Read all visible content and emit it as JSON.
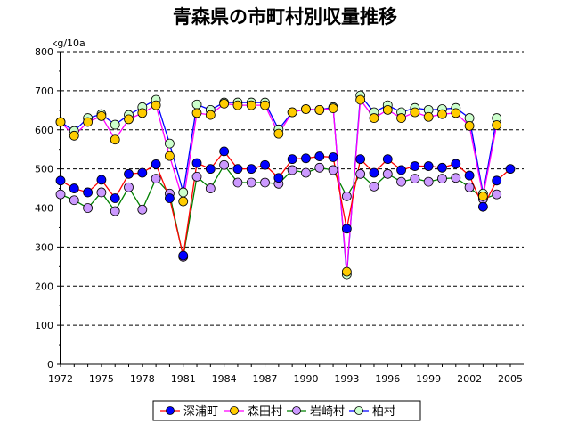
{
  "chart_data": {
    "type": "line",
    "title": "青森県の市町村別収量推移",
    "ylabel": "kg/10a",
    "xlabel": "",
    "ylim": [
      0,
      800
    ],
    "yticks": [
      0,
      100,
      200,
      300,
      400,
      500,
      600,
      700,
      800
    ],
    "xticks": [
      1972,
      1975,
      1978,
      1981,
      1984,
      1987,
      1990,
      1993,
      1996,
      1999,
      2002,
      2005
    ],
    "xlim": [
      1972,
      2005
    ],
    "grid": "horizontal dashed",
    "legend": "bottom",
    "x": [
      1972,
      1973,
      1974,
      1975,
      1976,
      1977,
      1978,
      1979,
      1980,
      1981,
      1982,
      1983,
      1984,
      1985,
      1986,
      1987,
      1988,
      1989,
      1990,
      1991,
      1992,
      1993,
      1994,
      1995,
      1996,
      1997,
      1998,
      1999,
      2000,
      2001,
      2002,
      2003,
      2004,
      2005
    ],
    "series": [
      {
        "name": "深浦町",
        "line": "#ff0000",
        "marker": "#0000ff",
        "values": [
          470,
          450,
          440,
          472,
          425,
          487,
          490,
          512,
          425,
          278,
          515,
          500,
          545,
          500,
          500,
          510,
          477,
          525,
          527,
          532,
          530,
          347,
          525,
          490,
          525,
          497,
          507,
          507,
          503,
          513,
          483,
          403,
          470,
          500
        ]
      },
      {
        "name": "森田村",
        "line": "#ff00ff",
        "marker": "#ffcc00",
        "values": [
          620,
          585,
          620,
          635,
          575,
          627,
          643,
          663,
          533,
          417,
          643,
          638,
          667,
          663,
          663,
          663,
          590,
          645,
          653,
          651,
          655,
          237,
          677,
          630,
          651,
          630,
          645,
          633,
          640,
          643,
          610,
          430,
          612,
          null
        ]
      },
      {
        "name": "岩崎村",
        "line": "#008000",
        "marker": "#cc99ff",
        "values": [
          435,
          420,
          400,
          440,
          392,
          453,
          396,
          475,
          437,
          275,
          480,
          450,
          510,
          465,
          465,
          465,
          462,
          497,
          490,
          503,
          497,
          430,
          487,
          455,
          487,
          467,
          475,
          467,
          475,
          477,
          453,
          423,
          435,
          null
        ]
      },
      {
        "name": "柏村",
        "line": "#0000ff",
        "marker": "#ccffcc",
        "values": [
          620,
          597,
          630,
          640,
          613,
          638,
          658,
          677,
          565,
          440,
          665,
          651,
          670,
          670,
          670,
          670,
          601,
          645,
          653,
          651,
          658,
          230,
          688,
          645,
          663,
          645,
          656,
          651,
          653,
          656,
          630,
          437,
          630,
          null
        ]
      }
    ]
  }
}
